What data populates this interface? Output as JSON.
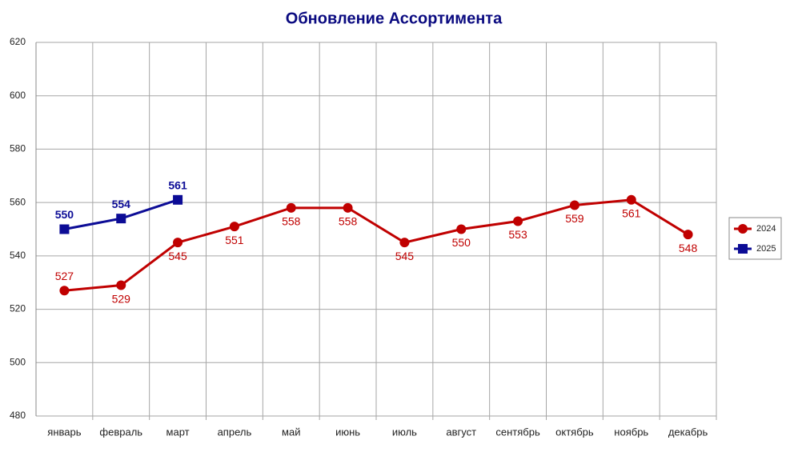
{
  "chart_data": {
    "type": "line",
    "title": "Обновление Ассортимента",
    "categories": [
      "январь",
      "февраль",
      "март",
      "апрель",
      "май",
      "июнь",
      "июль",
      "август",
      "сентябрь",
      "октябрь",
      "ноябрь",
      "декабрь"
    ],
    "series": [
      {
        "name": "2024",
        "color": "#c00000",
        "marker": "circle",
        "values": [
          527,
          529,
          545,
          551,
          558,
          558,
          545,
          550,
          553,
          559,
          561,
          548
        ]
      },
      {
        "name": "2025",
        "color": "#0c0c96",
        "marker": "square",
        "values": [
          550,
          554,
          561,
          null,
          null,
          null,
          null,
          null,
          null,
          null,
          null,
          null
        ]
      }
    ],
    "ylim": [
      480,
      620
    ],
    "yticks": [
      480,
      500,
      520,
      540,
      560,
      580,
      600,
      620
    ],
    "grid": true,
    "legend": "right"
  }
}
